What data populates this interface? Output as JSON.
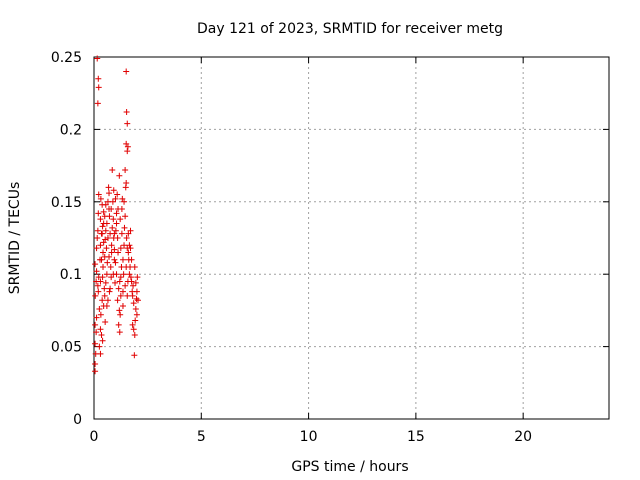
{
  "chart_data": {
    "type": "scatter",
    "title": "Day 121 of 2023, SRMTID for receiver metg",
    "xlabel": "GPS time / hours",
    "ylabel": "SRMTID / TECUs",
    "xlim": [
      0,
      24
    ],
    "ylim": [
      0,
      0.25
    ],
    "xticks": [
      0,
      5,
      10,
      15,
      20
    ],
    "xtick_labels": [
      "0",
      "5",
      "10",
      "15",
      "20"
    ],
    "yticks": [
      0,
      0.05,
      0.1,
      0.15,
      0.2,
      0.25
    ],
    "ytick_labels": [
      "0",
      "0.05",
      "0.1",
      "0.15",
      "0.2",
      "0.25"
    ],
    "grid": true,
    "marker": "+",
    "color": "#e00000",
    "series": [
      {
        "points": [
          [
            0.05,
            0.033
          ],
          [
            0.05,
            0.038
          ],
          [
            0.08,
            0.045
          ],
          [
            0.05,
            0.052
          ],
          [
            0.1,
            0.06
          ],
          [
            0.05,
            0.065
          ],
          [
            0.12,
            0.07
          ],
          [
            0.06,
            0.085
          ],
          [
            0.1,
            0.095
          ],
          [
            0.05,
            0.107
          ],
          [
            0.12,
            0.118
          ],
          [
            0.15,
            0.125
          ],
          [
            0.18,
            0.13
          ],
          [
            0.2,
            0.142
          ],
          [
            0.22,
            0.155
          ],
          [
            0.12,
            0.102
          ],
          [
            0.2,
            0.088
          ],
          [
            0.25,
            0.076
          ],
          [
            0.15,
            0.249
          ],
          [
            0.2,
            0.235
          ],
          [
            0.22,
            0.229
          ],
          [
            0.18,
            0.218
          ],
          [
            0.3,
            0.062
          ],
          [
            0.35,
            0.058
          ],
          [
            0.32,
            0.072
          ],
          [
            0.38,
            0.082
          ],
          [
            0.3,
            0.095
          ],
          [
            0.4,
            0.098
          ],
          [
            0.35,
            0.11
          ],
          [
            0.42,
            0.115
          ],
          [
            0.3,
            0.12
          ],
          [
            0.45,
            0.122
          ],
          [
            0.35,
            0.128
          ],
          [
            0.4,
            0.133
          ],
          [
            0.3,
            0.138
          ],
          [
            0.45,
            0.143
          ],
          [
            0.38,
            0.148
          ],
          [
            0.32,
            0.152
          ],
          [
            0.42,
            0.105
          ],
          [
            0.48,
            0.09
          ],
          [
            0.45,
            0.078
          ],
          [
            0.5,
            0.085
          ],
          [
            0.5,
            0.112
          ],
          [
            0.52,
            0.124
          ],
          [
            0.55,
            0.13
          ],
          [
            0.5,
            0.14
          ],
          [
            0.58,
            0.118
          ],
          [
            0.6,
            0.1
          ],
          [
            0.55,
            0.094
          ],
          [
            0.62,
            0.108
          ],
          [
            0.65,
            0.125
          ],
          [
            0.6,
            0.135
          ],
          [
            0.65,
            0.15
          ],
          [
            0.68,
            0.16
          ],
          [
            0.7,
            0.156
          ],
          [
            0.72,
            0.14
          ],
          [
            0.75,
            0.128
          ],
          [
            0.7,
            0.112
          ],
          [
            0.78,
            0.105
          ],
          [
            0.8,
            0.098
          ],
          [
            0.75,
            0.09
          ],
          [
            0.82,
            0.12
          ],
          [
            0.85,
            0.132
          ],
          [
            0.8,
            0.145
          ],
          [
            0.88,
            0.15
          ],
          [
            0.9,
            0.138
          ],
          [
            0.92,
            0.125
          ],
          [
            0.95,
            0.11
          ],
          [
            0.9,
            0.1
          ],
          [
            0.98,
            0.094
          ],
          [
            1.0,
            0.108
          ],
          [
            0.95,
            0.117
          ],
          [
            1.02,
            0.13
          ],
          [
            1.05,
            0.142
          ],
          [
            0.85,
            0.172
          ],
          [
            0.92,
            0.158
          ],
          [
            1.0,
            0.152
          ],
          [
            1.08,
            0.155
          ],
          [
            1.1,
            0.125
          ],
          [
            1.12,
            0.115
          ],
          [
            1.05,
            0.1
          ],
          [
            1.15,
            0.09
          ],
          [
            1.1,
            0.082
          ],
          [
            1.18,
            0.075
          ],
          [
            1.2,
            0.06
          ],
          [
            1.15,
            0.065
          ],
          [
            1.22,
            0.072
          ],
          [
            1.25,
            0.085
          ],
          [
            1.2,
            0.095
          ],
          [
            1.28,
            0.105
          ],
          [
            1.25,
            0.118
          ],
          [
            1.3,
            0.128
          ],
          [
            1.22,
            0.138
          ],
          [
            1.3,
            0.145
          ],
          [
            1.18,
            0.168
          ],
          [
            1.32,
            0.152
          ],
          [
            1.35,
            0.11
          ],
          [
            1.38,
            0.1
          ],
          [
            1.35,
            0.088
          ],
          [
            1.4,
            0.12
          ],
          [
            1.42,
            0.132
          ],
          [
            1.45,
            0.14
          ],
          [
            1.4,
            0.15
          ],
          [
            1.48,
            0.16
          ],
          [
            1.5,
            0.163
          ],
          [
            1.45,
            0.172
          ],
          [
            1.52,
            0.125
          ],
          [
            1.55,
            0.118
          ],
          [
            1.5,
            0.105
          ],
          [
            1.58,
            0.095
          ],
          [
            1.55,
            0.085
          ],
          [
            1.6,
            0.128
          ],
          [
            1.5,
            0.24
          ],
          [
            1.52,
            0.212
          ],
          [
            1.55,
            0.204
          ],
          [
            1.5,
            0.19
          ],
          [
            1.55,
            0.185
          ],
          [
            1.58,
            0.188
          ],
          [
            1.62,
            0.11
          ],
          [
            1.65,
            0.12
          ],
          [
            1.7,
            0.118
          ],
          [
            1.65,
            0.1
          ],
          [
            1.72,
            0.098
          ],
          [
            1.75,
            0.095
          ],
          [
            1.7,
            0.13
          ],
          [
            1.78,
            0.088
          ],
          [
            1.8,
            0.085
          ],
          [
            1.82,
            0.092
          ],
          [
            1.85,
            0.08
          ],
          [
            1.8,
            0.065
          ],
          [
            1.85,
            0.062
          ],
          [
            1.9,
            0.058
          ],
          [
            1.88,
            0.044
          ],
          [
            1.92,
            0.068
          ],
          [
            1.95,
            0.076
          ],
          [
            1.98,
            0.083
          ],
          [
            2.0,
            0.088
          ],
          [
            1.95,
            0.094
          ],
          [
            2.02,
            0.098
          ],
          [
            1.9,
            0.105
          ],
          [
            2.05,
            0.082
          ],
          [
            2.0,
            0.072
          ],
          [
            0.6,
            0.078
          ],
          [
            0.52,
            0.067
          ],
          [
            0.4,
            0.054
          ],
          [
            0.3,
            0.045
          ],
          [
            0.25,
            0.05
          ],
          [
            0.72,
            0.088
          ],
          [
            0.65,
            0.082
          ],
          [
            1.05,
            0.135
          ],
          [
            1.12,
            0.145
          ],
          [
            0.95,
            0.128
          ],
          [
            0.82,
            0.115
          ],
          [
            0.7,
            0.145
          ],
          [
            0.55,
            0.148
          ],
          [
            0.45,
            0.135
          ],
          [
            0.38,
            0.128
          ],
          [
            0.28,
            0.11
          ],
          [
            0.22,
            0.098
          ],
          [
            0.18,
            0.092
          ],
          [
            1.25,
            0.098
          ],
          [
            1.35,
            0.078
          ],
          [
            1.45,
            0.092
          ],
          [
            1.6,
            0.115
          ],
          [
            1.68,
            0.105
          ],
          [
            1.75,
            0.11
          ]
        ]
      }
    ]
  }
}
